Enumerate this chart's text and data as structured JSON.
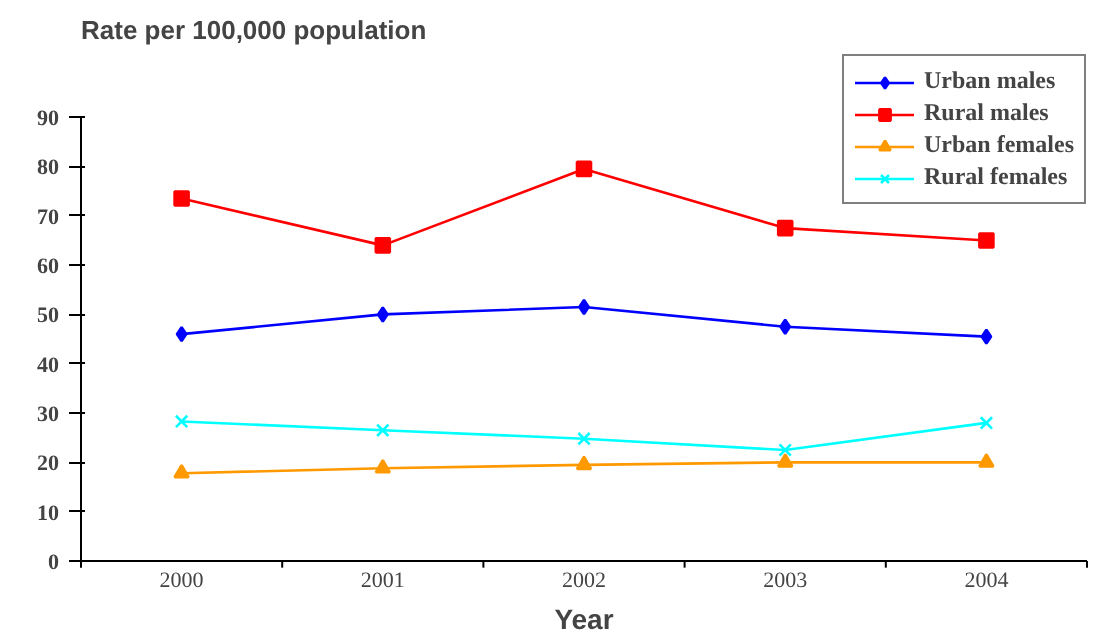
{
  "chart_data": {
    "type": "line",
    "ylabel": "Rate per 100,000 population",
    "xlabel": "Year",
    "categories": [
      "2000",
      "2001",
      "2002",
      "2003",
      "2004"
    ],
    "series": [
      {
        "name": "Urban males",
        "color": "#0000ff",
        "marker": "diamond",
        "values": [
          46,
          50,
          51.5,
          47.5,
          45.5
        ]
      },
      {
        "name": "Rural males",
        "color": "#ff0000",
        "marker": "square",
        "values": [
          73.5,
          64,
          79.5,
          67.5,
          65
        ]
      },
      {
        "name": "Urban females",
        "color": "#ff9900",
        "marker": "triangle",
        "values": [
          17.8,
          18.8,
          19.5,
          20,
          20
        ]
      },
      {
        "name": "Rural females",
        "color": "#00ffff",
        "marker": "cross",
        "values": [
          28.3,
          26.5,
          24.8,
          22.5,
          28
        ]
      }
    ],
    "ylim": [
      0,
      90
    ],
    "yticks": [
      0,
      10,
      20,
      30,
      40,
      50,
      60,
      70,
      80,
      90
    ],
    "grid": false,
    "legend": "top right"
  }
}
